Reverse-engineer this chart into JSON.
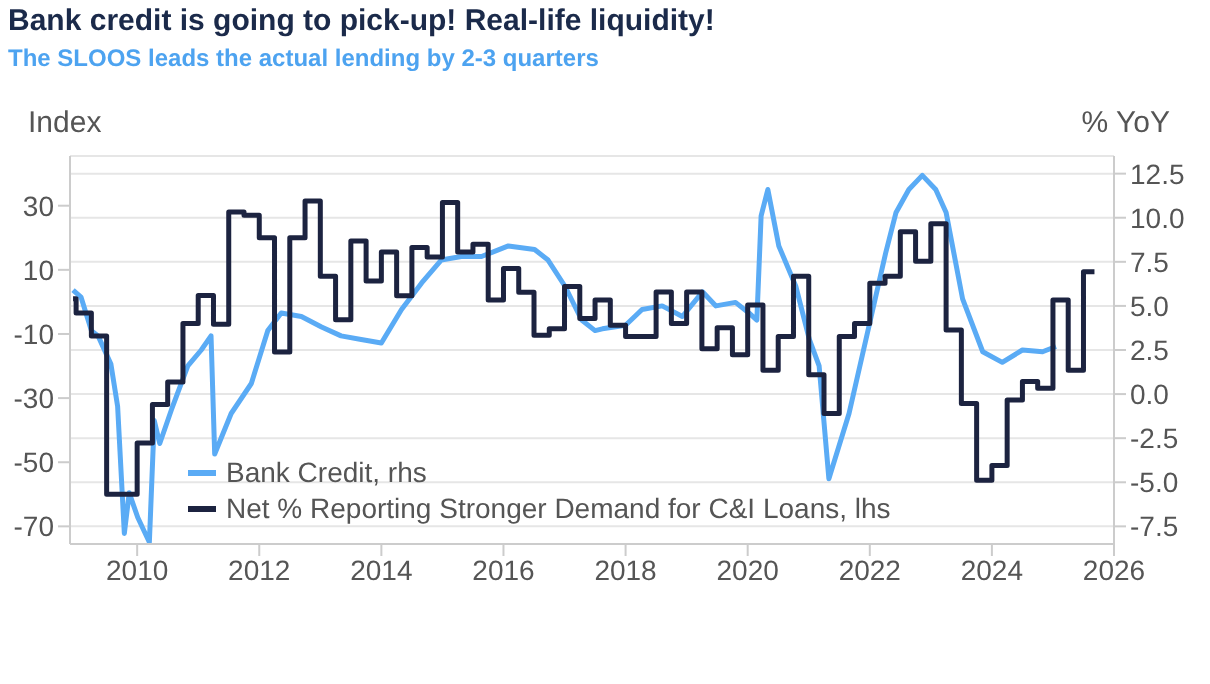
{
  "chart_data": {
    "type": "line",
    "title": "Bank credit is going to pick-up! Real-life liquidity!",
    "subtitle": "The SLOOS leads the actual lending by 2-3 quarters",
    "ylabel": "Index",
    "y2label": "% YoY",
    "xlim": [
      2008.9,
      2026
    ],
    "xticks": [
      2010,
      2012,
      2014,
      2016,
      2018,
      2020,
      2022,
      2024,
      2026
    ],
    "ylim": [
      -75.5,
      45.5
    ],
    "yticks": [
      -70,
      -50,
      -30,
      -10,
      10,
      30
    ],
    "y2lim": [
      -8.5,
      13.5
    ],
    "y2ticks": [
      {
        "value": -7.5,
        "label": "-7.5"
      },
      {
        "value": -5,
        "label": "-5.0"
      },
      {
        "value": -2.5,
        "label": "-2.5"
      },
      {
        "value": 0,
        "label": "0.0"
      },
      {
        "value": 2.5,
        "label": "2.5"
      },
      {
        "value": 5,
        "label": "5.0"
      },
      {
        "value": 7.5,
        "label": "7.5"
      },
      {
        "value": 10,
        "label": "10.0"
      },
      {
        "value": 12.5,
        "label": "12.5"
      }
    ],
    "grid": "y",
    "legend": "bottom left",
    "marker": "none",
    "line_style": "solid",
    "series": [
      {
        "name": "Bank Credit, rhs",
        "axis": "y2",
        "color": "#5aabf5",
        "x": [
          2008.95,
          2009.08,
          2009.25,
          2009.36,
          2009.57,
          2009.68,
          2009.79,
          2009.87,
          2010.01,
          2010.2,
          2010.28,
          2010.37,
          2010.56,
          2010.83,
          2011.05,
          2011.21,
          2011.27,
          2011.54,
          2011.87,
          2012.14,
          2012.36,
          2012.69,
          2013.02,
          2013.34,
          2013.67,
          2014.0,
          2014.33,
          2014.66,
          2014.98,
          2015.31,
          2015.64,
          2016.08,
          2016.51,
          2016.73,
          2017.01,
          2017.28,
          2017.5,
          2017.62,
          2018.0,
          2018.27,
          2018.6,
          2018.93,
          2019.26,
          2019.48,
          2019.8,
          2020.02,
          2020.15,
          2020.22,
          2020.33,
          2020.51,
          2020.79,
          2021.01,
          2021.17,
          2021.33,
          2021.66,
          2021.99,
          2022.26,
          2022.43,
          2022.64,
          2022.86,
          2023.08,
          2023.25,
          2023.52,
          2023.85,
          2024.17,
          2024.5,
          2024.83,
          2025.05
        ],
        "values": [
          5.9,
          5.5,
          3.6,
          3.3,
          1.7,
          -0.7,
          -7.9,
          -5.6,
          -7,
          -8.4,
          -1.5,
          -2.8,
          -0.9,
          1.6,
          2.5,
          3.3,
          -3.4,
          -1.1,
          0.6,
          3.6,
          4.6,
          4.4,
          3.8,
          3.3,
          3.1,
          2.9,
          4.8,
          6.3,
          7.6,
          7.8,
          7.8,
          8.4,
          8.2,
          7.6,
          6.1,
          4.2,
          3.6,
          3.7,
          3.9,
          4.8,
          5.0,
          4.4,
          5.8,
          5.0,
          5.2,
          4.6,
          4.2,
          10.1,
          11.6,
          8.4,
          6.1,
          3.1,
          1.6,
          -4.8,
          -1.1,
          3.9,
          8.0,
          10.3,
          11.6,
          12.4,
          11.6,
          10.3,
          5.4,
          2.4,
          1.8,
          2.5,
          2.4,
          2.7
        ]
      },
      {
        "name": "Net % Reporting Stronger Demand for C&I Loans, lhs",
        "type": "step",
        "axis": "y",
        "color": "#1c2340",
        "x": [
          2008.95,
          2009.0,
          2009.25,
          2009.5,
          2009.75,
          2010.0,
          2010.25,
          2010.5,
          2010.75,
          2011.0,
          2011.25,
          2011.5,
          2011.75,
          2012.0,
          2012.25,
          2012.5,
          2012.75,
          2013.0,
          2013.25,
          2013.5,
          2013.75,
          2014.0,
          2014.25,
          2014.5,
          2014.75,
          2015.0,
          2015.25,
          2015.5,
          2015.75,
          2016.0,
          2016.25,
          2016.5,
          2016.75,
          2017.0,
          2017.25,
          2017.5,
          2017.75,
          2018.0,
          2018.25,
          2018.5,
          2018.75,
          2019.0,
          2019.25,
          2019.5,
          2019.75,
          2020.0,
          2020.25,
          2020.5,
          2020.75,
          2021.0,
          2021.25,
          2021.5,
          2021.75,
          2022.0,
          2022.25,
          2022.5,
          2022.75,
          2023.0,
          2023.25,
          2023.5,
          2023.75,
          2024.0,
          2024.25,
          2024.5,
          2024.75,
          2025.0,
          2025.25,
          2025.5,
          2025.68
        ],
        "values": [
          1,
          -3.5,
          -10.6,
          -60,
          -60,
          -44,
          -32,
          -25,
          -6.7,
          2,
          -7,
          28,
          27,
          20,
          -15.6,
          20,
          31.5,
          8,
          -5.6,
          19,
          6.5,
          15.6,
          1.9,
          17,
          14,
          31,
          15.6,
          18,
          0.6,
          10.4,
          3,
          -10.4,
          -8.4,
          4.8,
          -5.2,
          0.6,
          -7.3,
          -10.8,
          -10.8,
          3.1,
          -6.7,
          3.1,
          -14.6,
          -8.1,
          -16.5,
          -1,
          -21.3,
          -10.8,
          8,
          -22.7,
          -34.8,
          -10.8,
          -6.7,
          5.8,
          8,
          21.9,
          12.7,
          24.4,
          -8.8,
          -31.7,
          -55.6,
          -51,
          -30.6,
          -24.8,
          -26.9,
          0.6,
          -21.3,
          9.4,
          9.4
        ]
      }
    ]
  }
}
